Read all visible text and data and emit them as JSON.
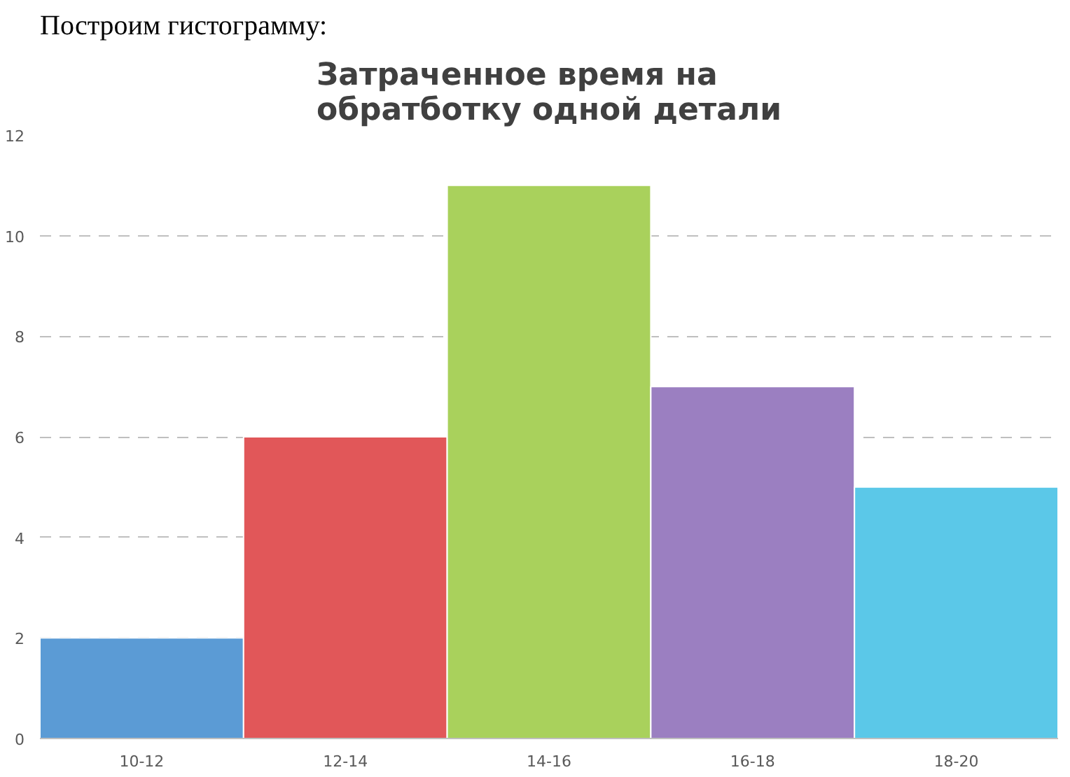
{
  "chart_data": {
    "type": "bar",
    "title": "Затраченное время на\nобратботку одной детали",
    "annotations": [
      "Построим гистограмму:"
    ],
    "categories": [
      "10-12",
      "12-14",
      "14-16",
      "16-18",
      "18-20"
    ],
    "values": [
      2,
      6,
      11,
      7,
      5
    ],
    "colors": [
      "#5b9bd5",
      "#e15759",
      "#a9d15c",
      "#9b7fc1",
      "#5bc8e8"
    ],
    "ylim": [
      0,
      12
    ],
    "yticks": [
      0,
      2,
      4,
      6,
      8,
      10,
      12
    ],
    "grid": "y"
  }
}
